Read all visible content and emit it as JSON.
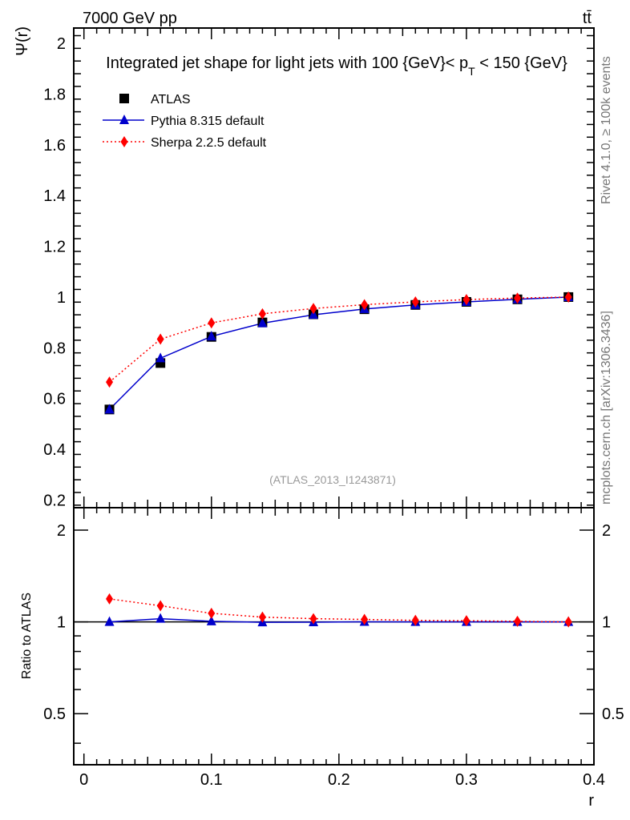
{
  "header": {
    "energy_label": "7000 GeV pp",
    "process_label": "tt̄"
  },
  "side": {
    "rivet_label": "Rivet 4.1.0, ≥ 100k events",
    "mcplots_label": "mcplots.cern.ch [arXiv:1306.3436]"
  },
  "chart_data": {
    "type": "line",
    "title": "Integrated jet shape for light jets with 100 {GeV}< p_T < 150 {GeV}",
    "title_parts": {
      "main": "Integrated jet shape for light jets with 100 {GeV}< p",
      "subscript": "T",
      "rest": " < 150 {GeV}"
    },
    "analysis_id": "(ATLAS_2013_I1243871)",
    "xlabel": "r",
    "ylabel": "Ψ(r)",
    "ratio_ylabel": "Ratio to ATLAS",
    "xlim": [
      -0.008,
      0.4
    ],
    "ylim": [
      0.17,
      2.06
    ],
    "ratio_ylim": [
      0.34,
      2.37
    ],
    "x_ticks": [
      0,
      0.1,
      0.2,
      0.3,
      0.4
    ],
    "x_tick_labels": [
      "0",
      "0.1",
      "0.2",
      "0.3",
      "0.4"
    ],
    "y_ticks": [
      0.2,
      0.4,
      0.6,
      0.8,
      1.0,
      1.2,
      1.4,
      1.6,
      1.8,
      2.0
    ],
    "y_tick_labels": [
      "0.2",
      "0.4",
      "0.6",
      "0.8",
      "1",
      "1.2",
      "1.4",
      "1.6",
      "1.8",
      "2"
    ],
    "ratio_ticks": [
      0.5,
      1,
      2
    ],
    "ratio_tick_labels": [
      "0.5",
      "1",
      "2"
    ],
    "x": [
      0.02,
      0.06,
      0.1,
      0.14,
      0.18,
      0.22,
      0.26,
      0.3,
      0.34,
      0.38
    ],
    "series": [
      {
        "name": "ATLAS",
        "color": "#000000",
        "marker": "square",
        "line": "none",
        "values": [
          0.557,
          0.74,
          0.843,
          0.9,
          0.932,
          0.952,
          0.969,
          0.981,
          0.991,
          1.0
        ],
        "ratio": [
          1.0,
          1.0,
          1.0,
          1.0,
          1.0,
          1.0,
          1.0,
          1.0,
          1.0,
          1.0
        ]
      },
      {
        "name": "Pythia 8.315 default",
        "color": "#0000cc",
        "marker": "triangle",
        "line": "solid",
        "values": [
          0.557,
          0.759,
          0.845,
          0.897,
          0.93,
          0.953,
          0.969,
          0.981,
          0.991,
          1.0
        ],
        "ratio": [
          1.0,
          1.025,
          1.005,
          0.997,
          0.998,
          1.001,
          1.0,
          1.0,
          1.0,
          1.0
        ]
      },
      {
        "name": "Sherpa 2.2.5 default",
        "color": "#ff0000",
        "marker": "diamond",
        "line": "dotted",
        "values": [
          0.665,
          0.834,
          0.898,
          0.934,
          0.955,
          0.97,
          0.981,
          0.99,
          0.996,
          1.0
        ],
        "ratio": [
          1.19,
          1.13,
          1.067,
          1.037,
          1.025,
          1.019,
          1.012,
          1.009,
          1.005,
          1.0
        ]
      }
    ],
    "legend_position": "top-left",
    "grid": false
  }
}
